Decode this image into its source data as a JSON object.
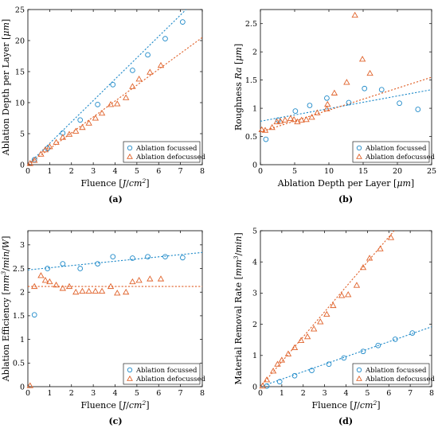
{
  "colors": {
    "focussed": "#1f8ac9",
    "defocussed": "#e0622a",
    "axis": "#000000",
    "legend_border": "#000000"
  },
  "chart_data": [
    {
      "id": "a",
      "type": "scatter",
      "panel_label": "(a)",
      "xlabel": "Fluence [J/cm²]",
      "ylabel": "Ablation Depth per Layer [μm]",
      "xlim": [
        0,
        8
      ],
      "ylim": [
        0,
        25
      ],
      "xticks": [
        0,
        1,
        2,
        3,
        4,
        5,
        6,
        7,
        8
      ],
      "yticks": [
        0,
        5,
        10,
        15,
        20,
        25
      ],
      "legend": "bottom-right",
      "series": [
        {
          "name": "Ablation focussed",
          "marker": "circle",
          "color_key": "focussed",
          "points": [
            [
              0.3,
              0.8
            ],
            [
              0.9,
              2.6
            ],
            [
              1.6,
              5.1
            ],
            [
              2.4,
              7.2
            ],
            [
              3.2,
              9.7
            ],
            [
              3.9,
              12.9
            ],
            [
              4.8,
              15.2
            ],
            [
              5.5,
              17.7
            ],
            [
              6.3,
              20.3
            ],
            [
              7.1,
              23.0
            ]
          ],
          "fit": [
            [
              0.0,
              0.0
            ],
            [
              7.4,
              25.5
            ]
          ]
        },
        {
          "name": "Ablation defocussed",
          "marker": "triangle",
          "color_key": "defocussed",
          "points": [
            [
              0.1,
              0.2
            ],
            [
              0.3,
              0.7
            ],
            [
              0.6,
              1.7
            ],
            [
              0.8,
              2.4
            ],
            [
              1.0,
              2.9
            ],
            [
              1.3,
              3.6
            ],
            [
              1.6,
              4.4
            ],
            [
              1.9,
              4.9
            ],
            [
              2.2,
              5.4
            ],
            [
              2.5,
              6.0
            ],
            [
              2.8,
              6.7
            ],
            [
              3.1,
              7.5
            ],
            [
              3.4,
              8.3
            ],
            [
              3.8,
              9.7
            ],
            [
              4.1,
              9.8
            ],
            [
              4.5,
              10.8
            ],
            [
              4.8,
              12.6
            ],
            [
              5.1,
              13.8
            ],
            [
              5.6,
              14.9
            ],
            [
              6.1,
              16.0
            ]
          ],
          "fit": [
            [
              0.0,
              0.0
            ],
            [
              8.0,
              20.5
            ]
          ]
        }
      ]
    },
    {
      "id": "b",
      "type": "scatter",
      "panel_label": "(b)",
      "xlabel": "Ablation Depth per Layer [μm]",
      "ylabel": "Roughness Ra [μm]",
      "xlim": [
        0,
        25
      ],
      "ylim": [
        0,
        2.75
      ],
      "xticks": [
        0,
        5,
        10,
        15,
        20,
        25
      ],
      "yticks": [
        0,
        0.5,
        1,
        1.5,
        2,
        2.5
      ],
      "legend": "bottom-right",
      "series": [
        {
          "name": "Ablation focussed",
          "marker": "circle",
          "color_key": "focussed",
          "points": [
            [
              0.8,
              0.45
            ],
            [
              2.6,
              0.79
            ],
            [
              5.1,
              0.95
            ],
            [
              7.2,
              1.05
            ],
            [
              9.7,
              1.18
            ],
            [
              12.9,
              1.1
            ],
            [
              15.2,
              1.35
            ],
            [
              17.7,
              1.33
            ],
            [
              20.3,
              1.09
            ],
            [
              23.0,
              0.98
            ]
          ],
          "fit": [
            [
              0.0,
              0.77
            ],
            [
              25.0,
              1.33
            ]
          ]
        },
        {
          "name": "Ablation defocussed",
          "marker": "triangle",
          "color_key": "defocussed",
          "points": [
            [
              0.2,
              0.62
            ],
            [
              0.7,
              0.61
            ],
            [
              1.7,
              0.66
            ],
            [
              2.4,
              0.76
            ],
            [
              2.9,
              0.77
            ],
            [
              3.6,
              0.79
            ],
            [
              4.4,
              0.82
            ],
            [
              4.9,
              0.8
            ],
            [
              5.4,
              0.76
            ],
            [
              6.0,
              0.79
            ],
            [
              6.7,
              0.8
            ],
            [
              7.5,
              0.84
            ],
            [
              8.3,
              0.92
            ],
            [
              9.7,
              0.99
            ],
            [
              9.8,
              1.07
            ],
            [
              10.8,
              1.27
            ],
            [
              12.6,
              1.46
            ],
            [
              13.8,
              2.65
            ],
            [
              14.9,
              1.87
            ],
            [
              16.0,
              1.62
            ]
          ],
          "fit": [
            [
              0.0,
              0.58
            ],
            [
              25.0,
              1.55
            ]
          ]
        }
      ]
    },
    {
      "id": "c",
      "type": "scatter",
      "panel_label": "(c)",
      "xlabel": "Fluence [J/cm²]",
      "ylabel": "Ablation Efficiency [mm³/min/W]",
      "xlim": [
        0,
        8
      ],
      "ylim": [
        0,
        3.3
      ],
      "xticks": [
        0,
        1,
        2,
        3,
        4,
        5,
        6,
        7,
        8
      ],
      "yticks": [
        0,
        0.5,
        1,
        1.5,
        2,
        2.5,
        3
      ],
      "legend": "bottom-right",
      "series": [
        {
          "name": "Ablation focussed",
          "marker": "circle",
          "color_key": "focussed",
          "points": [
            [
              0.3,
              1.52
            ],
            [
              0.9,
              2.5
            ],
            [
              1.6,
              2.6
            ],
            [
              2.4,
              2.5
            ],
            [
              3.2,
              2.6
            ],
            [
              3.9,
              2.75
            ],
            [
              4.8,
              2.72
            ],
            [
              5.5,
              2.75
            ],
            [
              6.3,
              2.75
            ],
            [
              7.1,
              2.73
            ]
          ],
          "fit": [
            [
              0.0,
              2.47
            ],
            [
              8.0,
              2.84
            ]
          ]
        },
        {
          "name": "Ablation defocussed",
          "marker": "triangle",
          "color_key": "defocussed",
          "points": [
            [
              0.1,
              0.02
            ],
            [
              0.3,
              2.12
            ],
            [
              0.6,
              2.35
            ],
            [
              0.8,
              2.25
            ],
            [
              1.0,
              2.22
            ],
            [
              1.3,
              2.15
            ],
            [
              1.6,
              2.08
            ],
            [
              1.9,
              2.12
            ],
            [
              2.2,
              2.0
            ],
            [
              2.5,
              2.02
            ],
            [
              2.8,
              2.02
            ],
            [
              3.1,
              2.02
            ],
            [
              3.4,
              2.02
            ],
            [
              3.8,
              2.12
            ],
            [
              4.1,
              1.98
            ],
            [
              4.5,
              2.0
            ],
            [
              4.8,
              2.22
            ],
            [
              5.1,
              2.25
            ],
            [
              5.6,
              2.28
            ],
            [
              6.1,
              2.28
            ]
          ],
          "fit": [
            [
              0.0,
              2.12
            ],
            [
              8.0,
              2.12
            ]
          ]
        }
      ]
    },
    {
      "id": "d",
      "type": "scatter",
      "panel_label": "(d)",
      "xlabel": "Fluence [J/cm²]",
      "ylabel": "Material Removal Rate [mm³/min]",
      "xlim": [
        0,
        8
      ],
      "ylim": [
        0,
        5
      ],
      "xticks": [
        0,
        1,
        2,
        3,
        4,
        5,
        6,
        7,
        8
      ],
      "yticks": [
        0,
        1,
        2,
        3,
        4,
        5
      ],
      "legend": "bottom-right",
      "series": [
        {
          "name": "Ablation focussed",
          "marker": "circle",
          "color_key": "focussed",
          "points": [
            [
              0.3,
              0.02
            ],
            [
              0.9,
              0.16
            ],
            [
              1.6,
              0.35
            ],
            [
              2.4,
              0.52
            ],
            [
              3.2,
              0.72
            ],
            [
              3.9,
              0.92
            ],
            [
              4.8,
              1.13
            ],
            [
              5.5,
              1.32
            ],
            [
              6.3,
              1.52
            ],
            [
              7.1,
              1.72
            ]
          ],
          "fit": [
            [
              0.0,
              0.0
            ],
            [
              8.0,
              1.92
            ]
          ]
        },
        {
          "name": "Ablation defocussed",
          "marker": "triangle",
          "color_key": "defocussed",
          "points": [
            [
              0.1,
              0.02
            ],
            [
              0.3,
              0.22
            ],
            [
              0.6,
              0.5
            ],
            [
              0.8,
              0.72
            ],
            [
              1.0,
              0.85
            ],
            [
              1.3,
              1.05
            ],
            [
              1.6,
              1.25
            ],
            [
              1.9,
              1.48
            ],
            [
              2.2,
              1.6
            ],
            [
              2.5,
              1.85
            ],
            [
              2.8,
              2.08
            ],
            [
              3.1,
              2.32
            ],
            [
              3.4,
              2.6
            ],
            [
              3.8,
              2.92
            ],
            [
              4.1,
              2.95
            ],
            [
              4.5,
              3.25
            ],
            [
              4.8,
              3.82
            ],
            [
              5.1,
              4.12
            ],
            [
              5.6,
              4.42
            ],
            [
              6.1,
              4.78
            ]
          ],
          "fit": [
            [
              0.0,
              0.0
            ],
            [
              6.25,
              5.0
            ]
          ]
        }
      ]
    }
  ]
}
